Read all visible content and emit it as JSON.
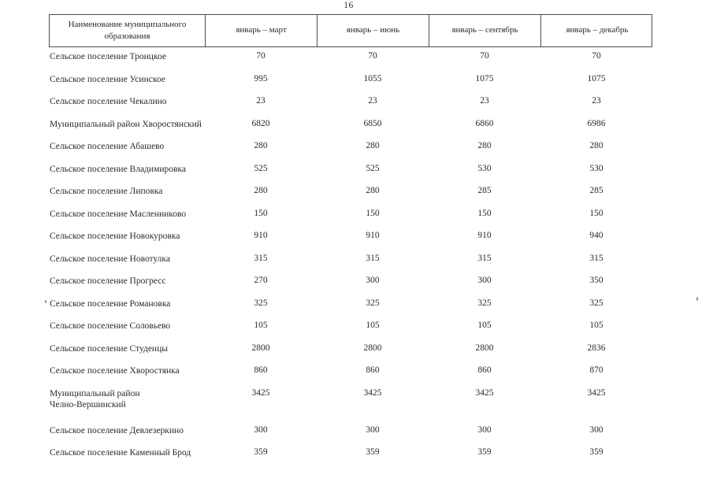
{
  "page": {
    "number": "16"
  },
  "table": {
    "header": {
      "name_column": "Наименование муниципального образования",
      "period_columns": [
        "январь – март",
        "январь – июнь",
        "январь – сентябрь",
        "январь – декабрь"
      ]
    },
    "rows": [
      {
        "name": "Сельское поселение Троицкое",
        "values": [
          "70",
          "70",
          "70",
          "70"
        ]
      },
      {
        "name": "Сельское поселение Усинское",
        "values": [
          "995",
          "1055",
          "1075",
          "1075"
        ]
      },
      {
        "name": "Сельское поселение Чекалино",
        "values": [
          "23",
          "23",
          "23",
          "23"
        ]
      },
      {
        "name": "Муниципальный район Хворостянский",
        "values": [
          "6820",
          "6850",
          "6860",
          "6986"
        ]
      },
      {
        "name": "Сельское поселение Абашево",
        "values": [
          "280",
          "280",
          "280",
          "280"
        ]
      },
      {
        "name": "Сельское поселение Владимировка",
        "values": [
          "525",
          "525",
          "530",
          "530"
        ]
      },
      {
        "name": "Сельское поселение Липовка",
        "values": [
          "280",
          "280",
          "285",
          "285"
        ]
      },
      {
        "name": "Сельское поселение Масленниково",
        "values": [
          "150",
          "150",
          "150",
          "150"
        ]
      },
      {
        "name": "Сельское поселение Новокуровка",
        "values": [
          "910",
          "910",
          "910",
          "940"
        ]
      },
      {
        "name": "Сельское поселение Новотулка",
        "values": [
          "315",
          "315",
          "315",
          "315"
        ]
      },
      {
        "name": "Сельское поселение Прогресс",
        "values": [
          "270",
          "300",
          "300",
          "350"
        ]
      },
      {
        "name": "Сельское поселение Романовка",
        "values": [
          "325",
          "325",
          "325",
          "325"
        ]
      },
      {
        "name": "Сельское поселение Соловьево",
        "values": [
          "105",
          "105",
          "105",
          "105"
        ]
      },
      {
        "name": "Сельское поселение Студенцы",
        "values": [
          "2800",
          "2800",
          "2800",
          "2836"
        ]
      },
      {
        "name": "Сельское поселение Хворостянка",
        "values": [
          "860",
          "860",
          "860",
          "870"
        ]
      },
      {
        "name": "Муниципальный район\nЧелно-Вершинский",
        "values": [
          "3425",
          "3425",
          "3425",
          "3425"
        ]
      },
      {
        "name": "Сельское поселение Девлезеркино",
        "values": [
          "300",
          "300",
          "300",
          "300"
        ]
      },
      {
        "name": "Сельское поселение Каменный Брод",
        "values": [
          "359",
          "359",
          "359",
          "359"
        ]
      }
    ]
  },
  "colors": {
    "text": "#2a2a2a",
    "border": "#4d4d4d",
    "background": "#ffffff"
  }
}
